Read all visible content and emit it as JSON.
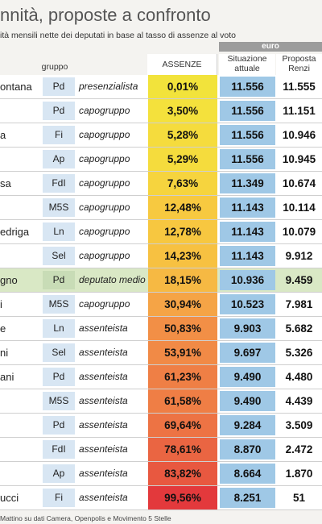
{
  "title": "nnità, proposte a confronto",
  "subtitle": "ità mensili nette dei deputati in base al tasso di assenze al voto",
  "euro_label": "euro",
  "headers": {
    "gruppo": "gruppo",
    "assenze": "ASSENZE",
    "situazione": "Situazione attuale",
    "proposta": "Proposta Renzi"
  },
  "colors": {
    "situazione_blue": "#9fc8e6",
    "highlight_row": "#d9e8c5",
    "party_cell": "#d8e6f3"
  },
  "rows": [
    {
      "name": "ontana",
      "party": "Pd",
      "role": "presenzialista",
      "absence": "0,01%",
      "absence_color": "#f2e33b",
      "current": "11.556",
      "proposal": "11.555"
    },
    {
      "name": "",
      "party": "Pd",
      "role": "capogruppo",
      "absence": "3,50%",
      "absence_color": "#f4e13c",
      "current": "11.556",
      "proposal": "11.151"
    },
    {
      "name": "a",
      "party": "Fi",
      "role": "capogruppo",
      "absence": "5,28%",
      "absence_color": "#f5dc3d",
      "current": "11.556",
      "proposal": "10.946"
    },
    {
      "name": "",
      "party": "Ap",
      "role": "capogruppo",
      "absence": "5,29%",
      "absence_color": "#f5dc3d",
      "current": "11.556",
      "proposal": "10.945"
    },
    {
      "name": "sa",
      "party": "FdI",
      "role": "capogruppo",
      "absence": "7,63%",
      "absence_color": "#f6d43e",
      "current": "11.349",
      "proposal": "10.674"
    },
    {
      "name": "",
      "party": "M5S",
      "role": "capogruppo",
      "absence": "12,48%",
      "absence_color": "#f7c940",
      "current": "11.143",
      "proposal": "10.114"
    },
    {
      "name": "edriga",
      "party": "Ln",
      "role": "capogruppo",
      "absence": "12,78%",
      "absence_color": "#f7c740",
      "current": "11.143",
      "proposal": "10.079"
    },
    {
      "name": "",
      "party": "Sel",
      "role": "capogruppo",
      "absence": "14,23%",
      "absence_color": "#f7c141",
      "current": "11.143",
      "proposal": "9.912"
    },
    {
      "name": "gno",
      "party": "Pd",
      "role": "deputato medio",
      "absence": "18,15%",
      "absence_color": "#f6b943",
      "current": "10.936",
      "proposal": "9.459",
      "highlight": true
    },
    {
      "name": "i",
      "party": "M5S",
      "role": "capogruppo",
      "absence": "30,94%",
      "absence_color": "#f5a446",
      "current": "10.523",
      "proposal": "7.981"
    },
    {
      "name": "e",
      "party": "Ln",
      "role": "assenteista",
      "absence": "50,83%",
      "absence_color": "#f28f46",
      "current": "9.903",
      "proposal": "5.682"
    },
    {
      "name": "ni",
      "party": "Sel",
      "role": "assenteista",
      "absence": "53,91%",
      "absence_color": "#f18a46",
      "current": "9.697",
      "proposal": "5.326"
    },
    {
      "name": "ani",
      "party": "Pd",
      "role": "assenteista",
      "absence": "61,23%",
      "absence_color": "#ef7f45",
      "current": "9.490",
      "proposal": "4.480"
    },
    {
      "name": "",
      "party": "M5S",
      "role": "assenteista",
      "absence": "61,58%",
      "absence_color": "#ef7e45",
      "current": "9.490",
      "proposal": "4.439"
    },
    {
      "name": "",
      "party": "Pd",
      "role": "assenteista",
      "absence": "69,64%",
      "absence_color": "#ed7344",
      "current": "9.284",
      "proposal": "3.509"
    },
    {
      "name": "",
      "party": "FdI",
      "role": "assenteista",
      "absence": "78,61%",
      "absence_color": "#ea6542",
      "current": "8.870",
      "proposal": "2.472"
    },
    {
      "name": "",
      "party": "Ap",
      "role": "assenteista",
      "absence": "83,82%",
      "absence_color": "#e85840",
      "current": "8.664",
      "proposal": "1.870"
    },
    {
      "name": "ucci",
      "party": "Fi",
      "role": "assenteista",
      "absence": "99,56%",
      "absence_color": "#e3393c",
      "current": "8.251",
      "proposal": "51"
    }
  ],
  "source": "Mattino su dati Camera, Openpolis e Movimento 5 Stelle"
}
